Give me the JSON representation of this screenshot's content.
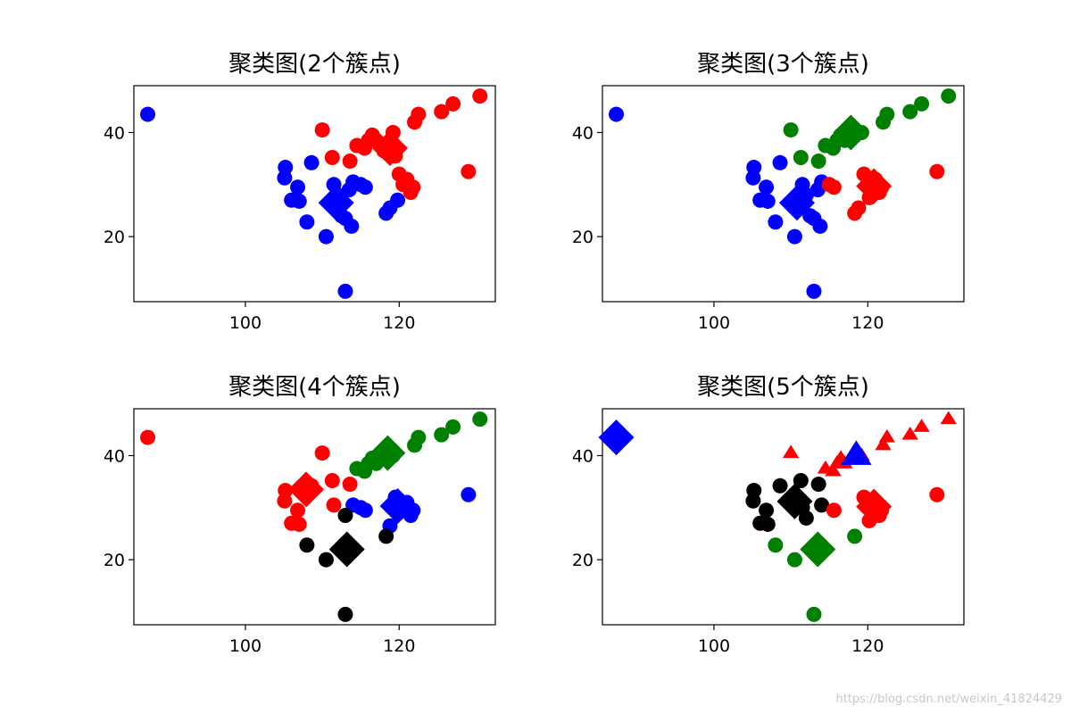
{
  "watermark": "https://blog.csdn.net/weixin_41824429",
  "colors": {
    "blue": "#0000ff",
    "red": "#ff0000",
    "green": "#008000",
    "black": "#000000"
  },
  "chart_data": [
    {
      "type": "scatter",
      "title": "聚类图(2个簇点)",
      "xlim": [
        85.5,
        132.5
      ],
      "ylim": [
        7.5,
        49
      ],
      "xticks": [
        100,
        120
      ],
      "yticks": [
        20,
        40
      ],
      "series": [
        {
          "color": "blue",
          "marker": "circle",
          "points": [
            [
              87.3,
              43.5
            ],
            [
              105.2,
              33.3
            ],
            [
              105.1,
              31.3
            ],
            [
              106,
              27
            ],
            [
              106.8,
              29.5
            ],
            [
              107,
              26.8
            ],
            [
              108,
              22.8
            ],
            [
              108.6,
              34.2
            ],
            [
              110.5,
              20
            ],
            [
              111.5,
              30
            ],
            [
              112,
              28
            ],
            [
              112.5,
              24
            ],
            [
              113,
              9.5
            ],
            [
              113,
              23.5
            ],
            [
              113.5,
              29
            ],
            [
              113.8,
              22
            ],
            [
              114,
              30.5
            ],
            [
              115,
              30
            ],
            [
              115.6,
              29.5
            ],
            [
              118.3,
              24.5
            ],
            [
              118.8,
              25.5
            ],
            [
              119.8,
              27
            ]
          ]
        },
        {
          "color": "red",
          "marker": "circle",
          "points": [
            [
              110,
              40.5
            ],
            [
              111.3,
              35.2
            ],
            [
              113.6,
              34.5
            ],
            [
              114.5,
              37.5
            ],
            [
              115.5,
              37
            ],
            [
              116,
              38.5
            ],
            [
              116.5,
              39.5
            ],
            [
              117,
              38.5
            ],
            [
              118,
              36.5
            ],
            [
              118.5,
              38
            ],
            [
              119.2,
              40
            ],
            [
              119.5,
              35.5
            ],
            [
              120,
              32
            ],
            [
              120.5,
              30
            ],
            [
              121,
              31
            ],
            [
              121.5,
              28.5
            ],
            [
              121.8,
              29.5
            ],
            [
              122,
              42
            ],
            [
              122.5,
              43.5
            ],
            [
              125.5,
              44
            ],
            [
              127,
              45.5
            ],
            [
              129,
              32.5
            ],
            [
              130.5,
              47
            ]
          ]
        }
      ],
      "centroids": [
        {
          "color": "blue",
          "marker": "diamond",
          "x": 111.8,
          "y": 26.5
        },
        {
          "color": "red",
          "marker": "diamond",
          "x": 118.8,
          "y": 37.0
        }
      ]
    },
    {
      "type": "scatter",
      "title": "聚类图(3个簇点)",
      "xlim": [
        85.5,
        132.5
      ],
      "ylim": [
        7.5,
        49
      ],
      "xticks": [
        100,
        120
      ],
      "yticks": [
        20,
        40
      ],
      "series": [
        {
          "color": "blue",
          "marker": "circle",
          "points": [
            [
              87.3,
              43.5
            ],
            [
              105.2,
              33.3
            ],
            [
              105.1,
              31.3
            ],
            [
              106,
              27
            ],
            [
              106.8,
              29.5
            ],
            [
              107,
              26.8
            ],
            [
              108,
              22.8
            ],
            [
              108.6,
              34.2
            ],
            [
              110.5,
              20
            ],
            [
              111.5,
              30
            ],
            [
              112,
              28
            ],
            [
              112.5,
              24
            ],
            [
              113,
              9.5
            ],
            [
              113,
              23.5
            ],
            [
              113.5,
              29
            ],
            [
              113.8,
              22
            ],
            [
              114,
              30.5
            ]
          ]
        },
        {
          "color": "green",
          "marker": "circle",
          "points": [
            [
              110,
              40.5
            ],
            [
              111.3,
              35.2
            ],
            [
              113.6,
              34.5
            ],
            [
              114.5,
              37.5
            ],
            [
              115.5,
              37
            ],
            [
              116,
              38.5
            ],
            [
              116.5,
              39.5
            ],
            [
              117,
              38.5
            ],
            [
              119.2,
              40
            ],
            [
              122,
              42
            ],
            [
              122.5,
              43.5
            ],
            [
              125.5,
              44
            ],
            [
              127,
              45.5
            ],
            [
              130.5,
              47
            ]
          ]
        },
        {
          "color": "red",
          "marker": "circle",
          "points": [
            [
              115,
              30
            ],
            [
              115.6,
              29.5
            ],
            [
              118.3,
              24.5
            ],
            [
              118.8,
              25.5
            ],
            [
              119.5,
              32
            ],
            [
              120,
              31
            ],
            [
              120.5,
              30
            ],
            [
              121,
              31
            ],
            [
              121.5,
              28.5
            ],
            [
              121.8,
              29.5
            ],
            [
              120.2,
              27.5
            ],
            [
              129,
              32.5
            ]
          ]
        }
      ],
      "centroids": [
        {
          "color": "blue",
          "marker": "diamond",
          "x": 110.8,
          "y": 26.5
        },
        {
          "color": "green",
          "marker": "diamond",
          "x": 117.8,
          "y": 40.0
        },
        {
          "color": "red",
          "marker": "diamond",
          "x": 120.8,
          "y": 29.7
        }
      ]
    },
    {
      "type": "scatter",
      "title": "聚类图(4个簇点)",
      "xlim": [
        85.5,
        132.5
      ],
      "ylim": [
        7.5,
        49
      ],
      "xticks": [
        100,
        120
      ],
      "yticks": [
        20,
        40
      ],
      "series": [
        {
          "color": "red",
          "marker": "circle",
          "points": [
            [
              87.3,
              43.5
            ],
            [
              105.2,
              33.3
            ],
            [
              105.1,
              31.3
            ],
            [
              106,
              27
            ],
            [
              106.8,
              29.5
            ],
            [
              107,
              26.8
            ],
            [
              108.6,
              34.2
            ],
            [
              110,
              40.5
            ],
            [
              111.3,
              35.2
            ],
            [
              111.5,
              30.5
            ],
            [
              113.6,
              34.5
            ]
          ]
        },
        {
          "color": "green",
          "marker": "circle",
          "points": [
            [
              114.5,
              37.5
            ],
            [
              115.5,
              37
            ],
            [
              116,
              38.5
            ],
            [
              116.5,
              39.5
            ],
            [
              117,
              38.5
            ],
            [
              119.2,
              40
            ],
            [
              122,
              42
            ],
            [
              122.5,
              43.5
            ],
            [
              125.5,
              44
            ],
            [
              127,
              45.5
            ],
            [
              130.5,
              47
            ]
          ]
        },
        {
          "color": "blue",
          "marker": "circle",
          "points": [
            [
              114,
              30.5
            ],
            [
              115,
              30
            ],
            [
              115.6,
              29.5
            ],
            [
              118.8,
              26.5
            ],
            [
              119.5,
              32
            ],
            [
              120,
              31
            ],
            [
              120.5,
              30
            ],
            [
              121,
              31
            ],
            [
              121.5,
              28.5
            ],
            [
              121.8,
              29.5
            ],
            [
              129,
              32.5
            ]
          ]
        },
        {
          "color": "black",
          "marker": "circle",
          "points": [
            [
              108,
              22.8
            ],
            [
              110.5,
              20
            ],
            [
              113,
              9.5
            ],
            [
              113,
              28.5
            ],
            [
              118.3,
              24.5
            ]
          ]
        }
      ],
      "centroids": [
        {
          "color": "red",
          "marker": "diamond",
          "x": 107.9,
          "y": 33.5
        },
        {
          "color": "green",
          "marker": "diamond",
          "x": 118.5,
          "y": 40.5
        },
        {
          "color": "blue",
          "marker": "diamond",
          "x": 119.8,
          "y": 30.3
        },
        {
          "color": "black",
          "marker": "diamond",
          "x": 113.2,
          "y": 22.0
        }
      ]
    },
    {
      "type": "scatter",
      "title": "聚类图(5个簇点)",
      "xlim": [
        85.5,
        132.5
      ],
      "ylim": [
        7.5,
        49
      ],
      "xticks": [
        100,
        120
      ],
      "yticks": [
        20,
        40
      ],
      "series": [
        {
          "color": "red",
          "marker": "triangle",
          "points": [
            [
              110,
              40.5
            ],
            [
              114.5,
              37.5
            ],
            [
              115.5,
              37
            ],
            [
              116,
              38.5
            ],
            [
              116.5,
              39.5
            ],
            [
              117,
              38.5
            ],
            [
              119.2,
              40
            ],
            [
              122,
              42
            ],
            [
              122.5,
              43.5
            ],
            [
              125.5,
              44
            ],
            [
              127,
              45.5
            ],
            [
              130.5,
              47
            ]
          ]
        },
        {
          "color": "black",
          "marker": "circle",
          "points": [
            [
              105.2,
              33.3
            ],
            [
              105.1,
              31.3
            ],
            [
              106,
              27
            ],
            [
              106.8,
              29.5
            ],
            [
              107,
              26.8
            ],
            [
              108.6,
              34.2
            ],
            [
              111.3,
              35.2
            ],
            [
              111.5,
              30
            ],
            [
              112,
              28
            ],
            [
              113.6,
              34.5
            ],
            [
              114,
              30.5
            ]
          ]
        },
        {
          "color": "red",
          "marker": "circle",
          "points": [
            [
              115.6,
              29.5
            ],
            [
              119.5,
              32
            ],
            [
              120,
              31
            ],
            [
              120.5,
              30
            ],
            [
              121,
              31
            ],
            [
              121.5,
              28.5
            ],
            [
              121.8,
              29.5
            ],
            [
              120.2,
              27.5
            ],
            [
              129,
              32.5
            ]
          ]
        },
        {
          "color": "green",
          "marker": "circle",
          "points": [
            [
              108,
              22.8
            ],
            [
              110.5,
              20
            ],
            [
              113,
              9.5
            ],
            [
              118.3,
              24.5
            ]
          ]
        }
      ],
      "centroids": [
        {
          "color": "blue",
          "marker": "diamond",
          "x": 87.3,
          "y": 43.5
        },
        {
          "color": "blue",
          "marker": "triangle",
          "x": 118.5,
          "y": 40.0
        },
        {
          "color": "black",
          "marker": "diamond",
          "x": 110.5,
          "y": 31.2
        },
        {
          "color": "red",
          "marker": "diamond",
          "x": 120.8,
          "y": 30.2
        },
        {
          "color": "green",
          "marker": "diamond",
          "x": 113.5,
          "y": 22.0
        }
      ]
    }
  ]
}
